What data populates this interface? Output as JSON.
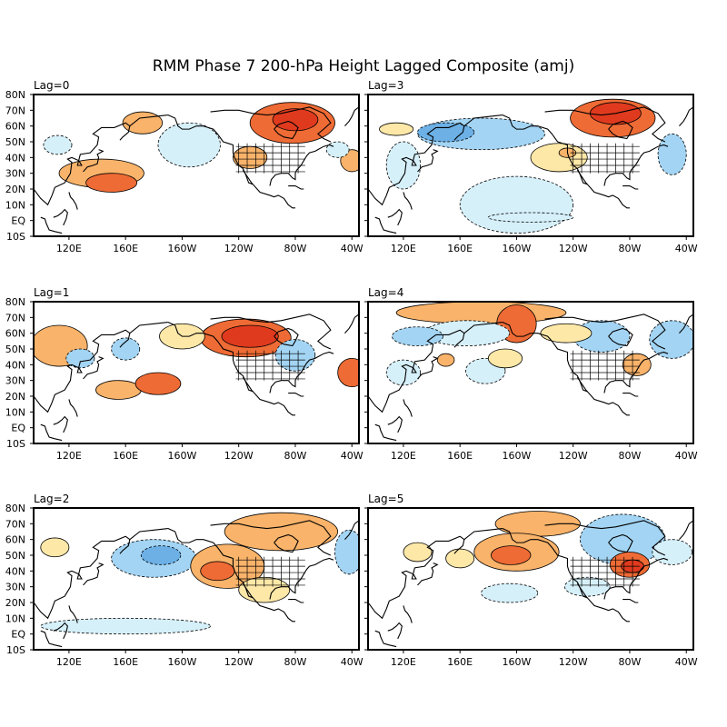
{
  "title": "RMM Phase 7 200-hPa Height Lagged Composite (amj)",
  "lat_labels": [
    "80N",
    "70N",
    "60N",
    "50N",
    "40N",
    "30N",
    "20N",
    "10N",
    "EQ",
    "10S"
  ],
  "lon_labels": [
    "120E",
    "160E",
    "160W",
    "120W",
    "80W",
    "40W"
  ],
  "panels": [
    {
      "label": "Lag=0"
    },
    {
      "label": "Lag=3"
    },
    {
      "label": "Lag=1"
    },
    {
      "label": "Lag=4"
    },
    {
      "label": "Lag=2"
    },
    {
      "label": "Lag=5"
    }
  ],
  "colors": {
    "neg_light": "#d6f0fa",
    "neg_mid": "#a3d4f3",
    "neg_dark": "#6cb0e6",
    "pos_light": "#fde8a8",
    "pos_mid": "#f9b36a",
    "pos_dark": "#ef6b35",
    "pos_darkest": "#e03a1e",
    "land_line": "#000000"
  }
}
